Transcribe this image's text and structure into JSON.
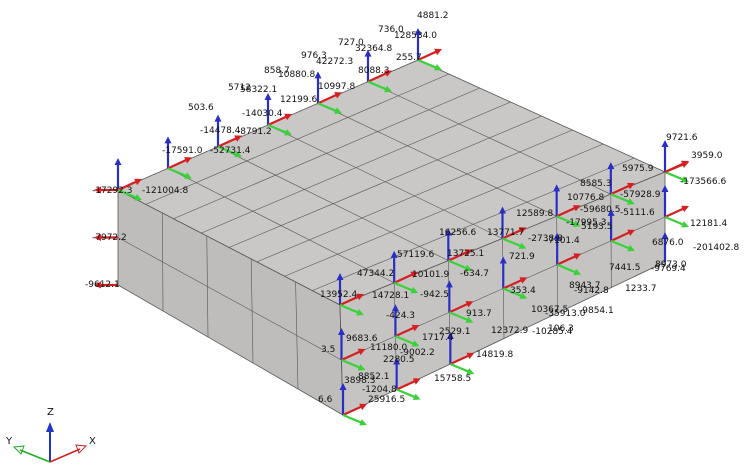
{
  "labels": [
    "4881.2",
    "736.0",
    "128534.0",
    "727.0",
    "32364.8",
    "255.7",
    "976.3",
    "42272.3",
    "8088.3",
    "858.7",
    "10880.8",
    "10997.8",
    "5712",
    "58322.1",
    "12199.6",
    "503.6",
    "-14030.4",
    "-14478.4",
    "-8791.2",
    "-17591.0",
    "-52731.4",
    "-17292.3",
    "-121004.8",
    "-7972.2",
    "-9612.1",
    "9721.6",
    "3959.0",
    "5975.9",
    "-173566.6",
    "8585.3",
    "-57928.9",
    "10776.8",
    "-59680.5",
    "-5111.6",
    "12589.8",
    "-17995.3",
    "5193.5",
    "13771.7",
    "-2738.8",
    "-7101.4",
    "16256.6",
    "12181.4",
    "6876.0",
    "-201402.8",
    "8973.0",
    "-9769.4",
    "13725.1",
    "721.9",
    "57119.6",
    "7441.5",
    "-634.7",
    "10101.9",
    "8943.7",
    "1233.7",
    "-9142.8",
    "47344.2",
    "353.4",
    "-942.5",
    "13952.4",
    "14728.1",
    "-9854.1",
    "10367.5",
    "-35913.0",
    "913.7",
    "-424.3",
    "2529.1",
    "12372.9",
    "-10285.4",
    "9683.6",
    "1717.4",
    "11180.0",
    "106.3",
    "14819.8",
    "3.5",
    "-9002.2",
    "2280.5",
    "15758.5",
    "8852.1",
    "3898.3",
    "-1204.8",
    "6.6",
    "25916.5"
  ],
  "axes": {
    "z": "Z",
    "y": "Y",
    "x": "X"
  }
}
